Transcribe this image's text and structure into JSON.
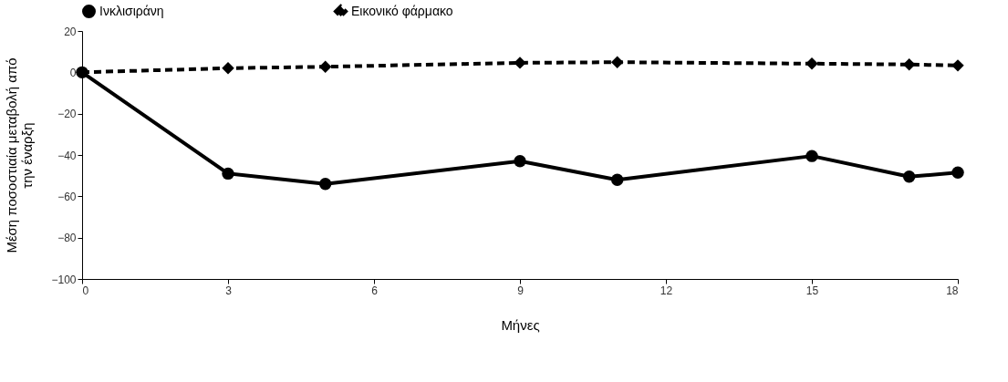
{
  "chart_data": {
    "type": "line",
    "xlabel": "Μήνες",
    "ylabel": "Μέση ποσοστιαία μεταβολή από την έναρξη",
    "x": [
      0,
      3,
      5,
      9,
      11,
      15,
      17,
      18
    ],
    "series": [
      {
        "name": "Ινκλισιράνη",
        "color": "#000000",
        "marker": "circle",
        "line_style": "solid",
        "values": [
          0,
          -49,
          -54,
          -43,
          -52,
          -40.5,
          -50.5,
          -48.5
        ]
      },
      {
        "name": "Εικονικό φάρμακο",
        "color": "#000000",
        "marker": "diamond",
        "line_style": "dashed",
        "values": [
          0,
          2,
          2.7,
          4.6,
          4.9,
          4.2,
          3.8,
          3.3
        ]
      }
    ],
    "xlim": [
      0,
      18
    ],
    "xticks": [
      0,
      3,
      6,
      9,
      12,
      15,
      18
    ],
    "ylim": [
      -100,
      20
    ],
    "yticks": [
      -100,
      -80,
      -60,
      -40,
      -20,
      0,
      20
    ],
    "grid": false,
    "legend": "top"
  }
}
